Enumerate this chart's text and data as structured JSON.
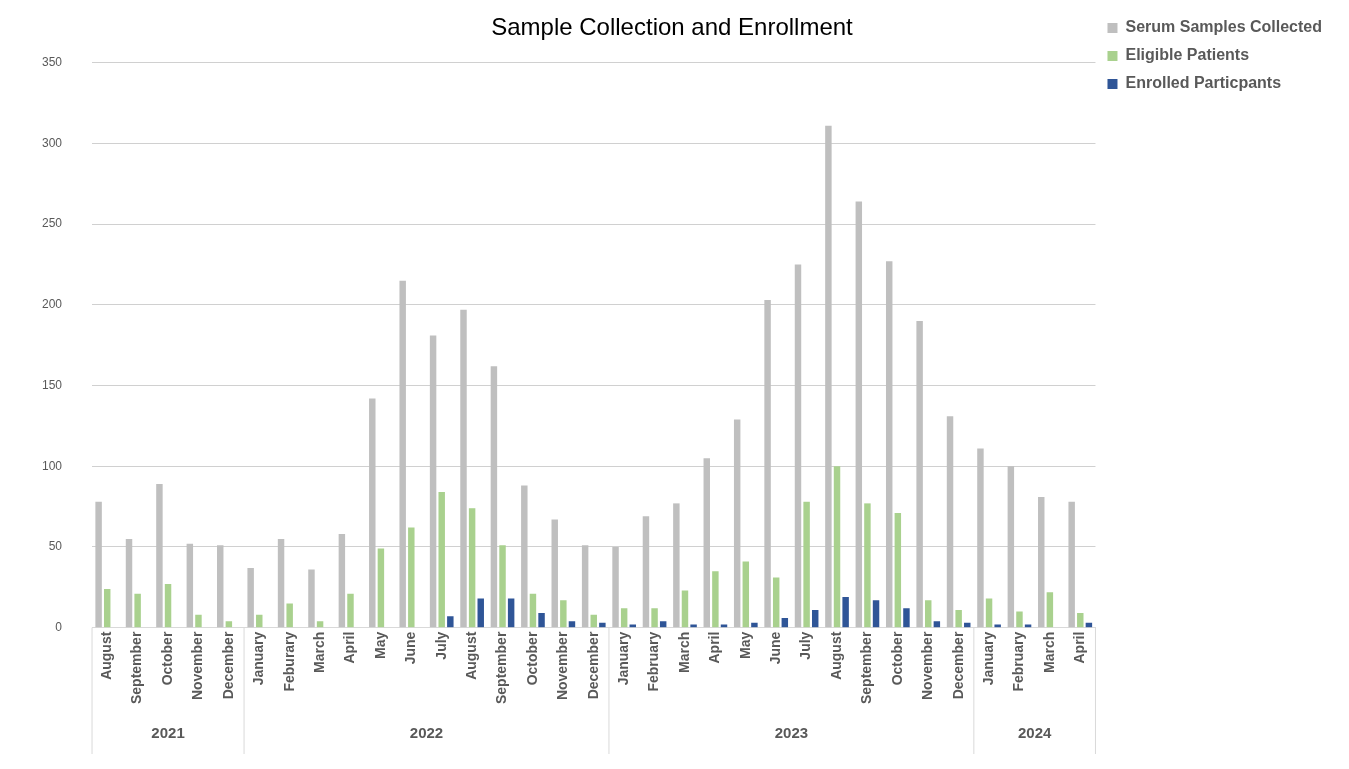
{
  "chart_data": {
    "type": "bar",
    "title": "Sample Collection and Enrollment",
    "categories": [
      "August",
      "September",
      "October",
      "November",
      "December",
      "January",
      "Feburary",
      "March",
      "April",
      "May",
      "June",
      "July",
      "August",
      "September",
      "October",
      "November",
      "December",
      "January",
      "February",
      "March",
      "April",
      "May",
      "June",
      "July",
      "August",
      "September",
      "October",
      "November",
      "December",
      "January",
      "February",
      "March",
      "April"
    ],
    "series": [
      {
        "name": "Serum Samples Collected",
        "color": "#bfbfbf",
        "values": [
          78,
          55,
          89,
          52,
          51,
          37,
          55,
          36,
          58,
          142,
          215,
          181,
          197,
          162,
          88,
          67,
          51,
          50,
          69,
          77,
          105,
          129,
          203,
          225,
          311,
          264,
          227,
          190,
          131,
          111,
          100,
          81,
          78
        ]
      },
      {
        "name": "Eligible Patients",
        "color": "#a9d18e",
        "values": [
          24,
          21,
          27,
          8,
          4,
          8,
          15,
          4,
          21,
          49,
          62,
          84,
          74,
          51,
          21,
          17,
          8,
          12,
          12,
          23,
          35,
          41,
          31,
          78,
          100,
          77,
          71,
          17,
          11,
          18,
          10,
          22,
          9
        ]
      },
      {
        "name": "Enrolled Particpants",
        "color": "#2f5597",
        "values": [
          0,
          0,
          0,
          0,
          0,
          0,
          0,
          0,
          0,
          0,
          0,
          7,
          18,
          18,
          9,
          4,
          3,
          2,
          4,
          2,
          2,
          3,
          6,
          11,
          19,
          17,
          12,
          4,
          3,
          2,
          2,
          0,
          3
        ]
      }
    ],
    "annotations": [
      "2021",
      "2022",
      "2023",
      "2024"
    ],
    "ylim": [
      0,
      350
    ],
    "yticks": [
      0,
      50,
      100,
      150,
      200,
      250,
      300,
      350
    ],
    "grid": "y",
    "legend": "top right"
  }
}
